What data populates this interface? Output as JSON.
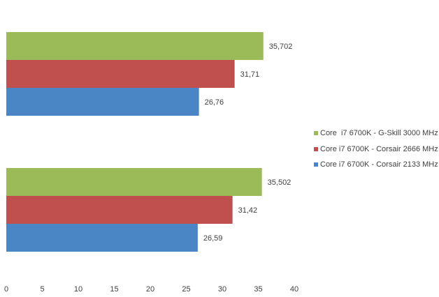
{
  "chart_data": {
    "type": "bar",
    "orientation": "horizontal",
    "categories": [
      "",
      ""
    ],
    "series": [
      {
        "name": "Core i7 6700K - Corsair 2133 MHz",
        "color": "#4a86c5",
        "values": [
          26.59,
          26.76
        ],
        "labels": [
          "26,59",
          "26,76"
        ]
      },
      {
        "name": "Core i7 6700K - Corsair 2666 MHz",
        "color": "#c0504d",
        "values": [
          31.42,
          31.71
        ],
        "labels": [
          "31,42",
          "31,71"
        ]
      },
      {
        "name": "Core  i7 6700K - G-Skill 3000 MHz",
        "color": "#9bbb59",
        "values": [
          35.502,
          35.702
        ],
        "labels": [
          "35,502",
          "35,702"
        ]
      }
    ],
    "xlim": [
      0,
      40
    ],
    "xticks": [
      "0",
      "5",
      "10",
      "15",
      "20",
      "25",
      "30",
      "35",
      "40"
    ],
    "grid": false,
    "legend_position": "right",
    "title": "",
    "xlabel": "",
    "ylabel": ""
  }
}
